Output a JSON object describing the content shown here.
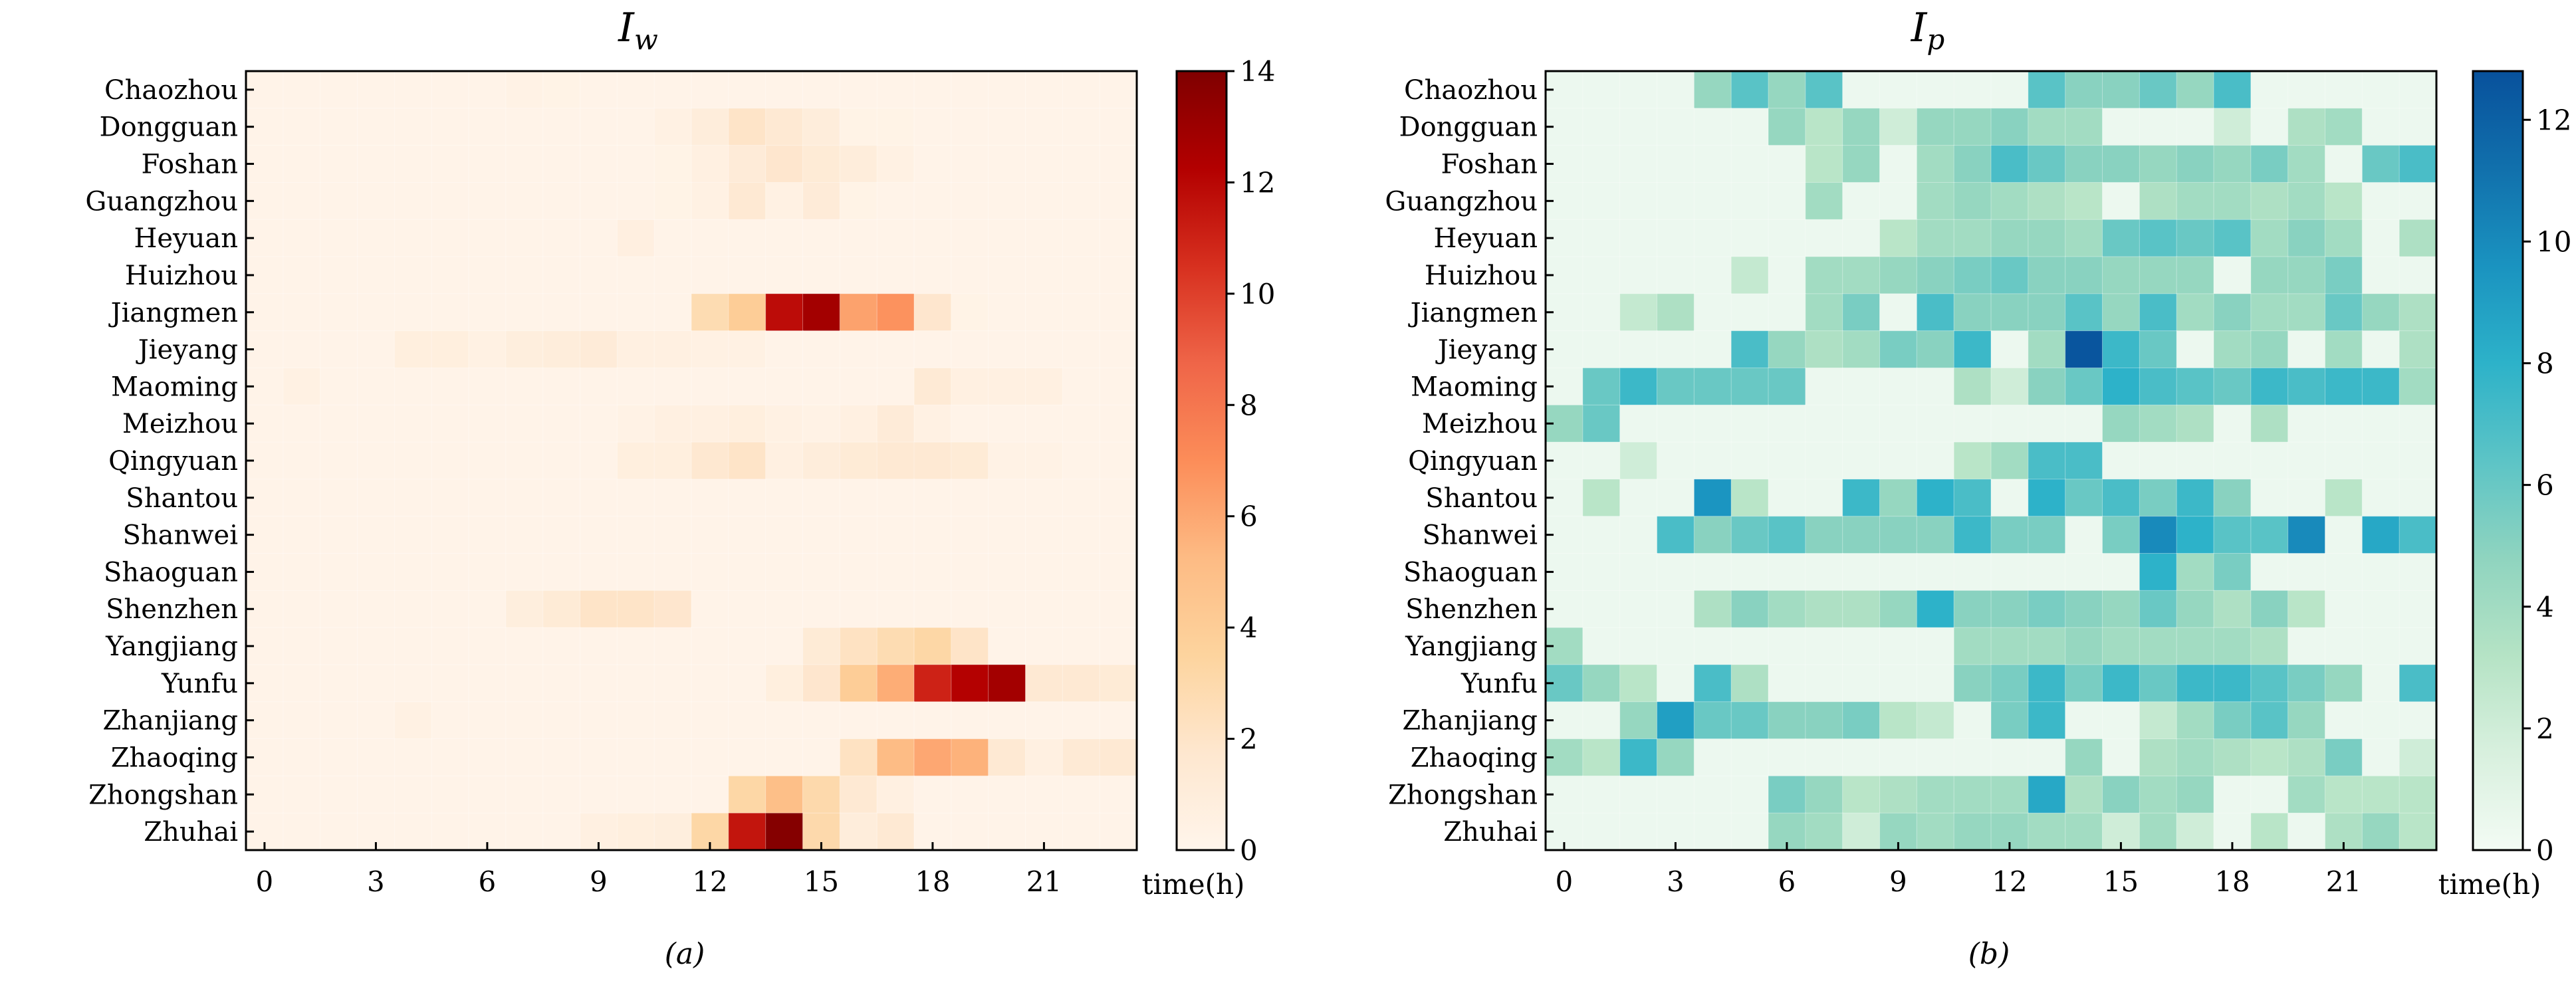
{
  "chart_data": [
    {
      "type": "heatmap",
      "title": "I",
      "title_sub": "w",
      "caption": "(a)",
      "xlabel": "time(h)",
      "x_tick_labels": [
        "0",
        "3",
        "6",
        "9",
        "12",
        "15",
        "18",
        "21"
      ],
      "x_tick_values": [
        0,
        3,
        6,
        9,
        12,
        15,
        18,
        21
      ],
      "hours": 24,
      "cities": [
        "Chaozhou",
        "Dongguan",
        "Foshan",
        "Guangzhou",
        "Heyuan",
        "Huizhou",
        "Jiangmen",
        "Jieyang",
        "Maoming",
        "Meizhou",
        "Qingyuan",
        "Shantou",
        "Shanwei",
        "Shaoguan",
        "Shenzhen",
        "Yangjiang",
        "Yunfu",
        "Zhanjiang",
        "Zhaoqing",
        "Zhongshan",
        "Zhuhai"
      ],
      "colorbar": {
        "min": 0,
        "max": 14,
        "tick_values": [
          0,
          2,
          4,
          6,
          8,
          10,
          12,
          14
        ],
        "tick_labels": [
          "0",
          "2",
          "4",
          "6",
          "8",
          "10",
          "12",
          "14"
        ],
        "stops": [
          "#fff5eb",
          "#fee7cf",
          "#fdd49e",
          "#fdbb84",
          "#fc8d59",
          "#ef6548",
          "#d7301f",
          "#b30000",
          "#7f0000"
        ]
      },
      "values": [
        [
          0.2,
          0.2,
          0.2,
          0.2,
          0.2,
          0.2,
          0.2,
          0.4,
          0.3,
          0.2,
          0.2,
          0.2,
          0.2,
          0.2,
          0.2,
          0.2,
          0.2,
          0.2,
          0.2,
          0.2,
          0.2,
          0.2,
          0.2,
          0.2
        ],
        [
          0.2,
          0.2,
          0.2,
          0.2,
          0.2,
          0.2,
          0.2,
          0.2,
          0.2,
          0.2,
          0.2,
          0.5,
          1.0,
          2.0,
          1.5,
          1.0,
          0.3,
          0.3,
          0.2,
          0.2,
          0.2,
          0.2,
          0.2,
          0.2
        ],
        [
          0.2,
          0.2,
          0.2,
          0.2,
          0.2,
          0.2,
          0.2,
          0.2,
          0.2,
          0.2,
          0.2,
          0.3,
          0.6,
          1.2,
          1.8,
          1.3,
          1.0,
          0.5,
          0.2,
          0.2,
          0.2,
          0.2,
          0.2,
          0.2
        ],
        [
          0.2,
          0.2,
          0.2,
          0.2,
          0.2,
          0.2,
          0.2,
          0.2,
          0.2,
          0.2,
          0.2,
          0.3,
          0.5,
          1.5,
          0.5,
          1.2,
          0.3,
          0.2,
          0.2,
          0.2,
          0.2,
          0.2,
          0.2,
          0.2
        ],
        [
          0.2,
          0.2,
          0.2,
          0.2,
          0.2,
          0.2,
          0.2,
          0.2,
          0.2,
          0.2,
          0.7,
          0.2,
          0.2,
          0.2,
          0.2,
          0.2,
          0.2,
          0.2,
          0.2,
          0.2,
          0.2,
          0.2,
          0.2,
          0.2
        ],
        [
          0.2,
          0.2,
          0.2,
          0.2,
          0.2,
          0.2,
          0.2,
          0.2,
          0.2,
          0.2,
          0.2,
          0.2,
          0.2,
          0.2,
          0.2,
          0.2,
          0.2,
          0.2,
          0.2,
          0.2,
          0.2,
          0.2,
          0.2,
          0.2
        ],
        [
          0.2,
          0.2,
          0.2,
          0.2,
          0.2,
          0.2,
          0.2,
          0.2,
          0.2,
          0.2,
          0.2,
          0.2,
          2.8,
          4.0,
          11.8,
          12.8,
          6.2,
          6.8,
          1.8,
          0.3,
          0.2,
          0.2,
          0.2,
          0.2
        ],
        [
          0.2,
          0.2,
          0.2,
          0.2,
          0.8,
          0.8,
          0.5,
          0.9,
          1.0,
          1.2,
          0.6,
          0.6,
          0.5,
          0.5,
          0.2,
          0.2,
          0.2,
          0.2,
          0.2,
          0.2,
          0.2,
          0.2,
          0.2,
          0.2
        ],
        [
          0.2,
          0.5,
          0.2,
          0.2,
          0.2,
          0.2,
          0.2,
          0.2,
          0.2,
          0.2,
          0.2,
          0.2,
          0.2,
          0.2,
          0.2,
          0.2,
          0.2,
          0.2,
          1.4,
          0.6,
          0.6,
          0.6,
          0.2,
          0.2
        ],
        [
          0.2,
          0.2,
          0.2,
          0.2,
          0.2,
          0.2,
          0.2,
          0.2,
          0.2,
          0.2,
          0.4,
          0.6,
          0.6,
          0.8,
          0.5,
          0.4,
          0.6,
          1.2,
          0.5,
          0.2,
          0.2,
          0.2,
          0.2,
          0.2
        ],
        [
          0.2,
          0.2,
          0.2,
          0.2,
          0.2,
          0.2,
          0.2,
          0.2,
          0.2,
          0.2,
          0.8,
          0.8,
          1.6,
          2.0,
          0.6,
          1.0,
          1.3,
          1.5,
          1.5,
          1.3,
          0.4,
          0.4,
          0.2,
          0.2
        ],
        [
          0.2,
          0.2,
          0.2,
          0.2,
          0.2,
          0.2,
          0.2,
          0.2,
          0.2,
          0.2,
          0.2,
          0.2,
          0.2,
          0.2,
          0.2,
          0.2,
          0.2,
          0.2,
          0.2,
          0.2,
          0.2,
          0.2,
          0.2,
          0.2
        ],
        [
          0.2,
          0.2,
          0.2,
          0.2,
          0.2,
          0.2,
          0.2,
          0.2,
          0.2,
          0.2,
          0.2,
          0.2,
          0.2,
          0.2,
          0.2,
          0.2,
          0.2,
          0.2,
          0.2,
          0.2,
          0.2,
          0.2,
          0.2,
          0.2
        ],
        [
          0.2,
          0.2,
          0.2,
          0.2,
          0.2,
          0.2,
          0.2,
          0.2,
          0.2,
          0.2,
          0.2,
          0.2,
          0.2,
          0.2,
          0.2,
          0.2,
          0.2,
          0.2,
          0.2,
          0.2,
          0.2,
          0.2,
          0.2,
          0.2
        ],
        [
          0.2,
          0.2,
          0.2,
          0.2,
          0.2,
          0.2,
          0.2,
          0.9,
          1.3,
          2.0,
          2.0,
          1.8,
          0.2,
          0.2,
          0.2,
          0.2,
          0.2,
          0.2,
          0.2,
          0.2,
          0.2,
          0.2,
          0.2,
          0.2
        ],
        [
          0.2,
          0.2,
          0.2,
          0.2,
          0.2,
          0.2,
          0.2,
          0.2,
          0.2,
          0.2,
          0.2,
          0.2,
          0.2,
          0.2,
          0.2,
          1.3,
          2.2,
          2.8,
          3.2,
          2.0,
          0.2,
          0.2,
          0.2,
          0.2
        ],
        [
          0.2,
          0.2,
          0.2,
          0.2,
          0.2,
          0.2,
          0.2,
          0.2,
          0.2,
          0.2,
          0.2,
          0.2,
          0.2,
          0.2,
          0.8,
          1.8,
          4.0,
          5.8,
          11.0,
          12.2,
          12.8,
          1.5,
          1.5,
          1.3
        ],
        [
          0.2,
          0.2,
          0.2,
          0.2,
          0.5,
          0.2,
          0.2,
          0.2,
          0.2,
          0.2,
          0.2,
          0.2,
          0.2,
          0.2,
          0.2,
          0.2,
          0.2,
          0.2,
          0.2,
          0.2,
          0.2,
          0.2,
          0.2,
          0.2
        ],
        [
          0.2,
          0.2,
          0.2,
          0.2,
          0.2,
          0.2,
          0.2,
          0.2,
          0.2,
          0.2,
          0.2,
          0.2,
          0.2,
          0.2,
          0.2,
          0.2,
          2.2,
          5.2,
          6.0,
          5.6,
          1.5,
          0.6,
          1.4,
          1.5
        ],
        [
          0.2,
          0.2,
          0.2,
          0.2,
          0.2,
          0.2,
          0.2,
          0.2,
          0.2,
          0.2,
          0.2,
          0.2,
          0.2,
          3.2,
          5.0,
          3.0,
          1.5,
          0.6,
          0.2,
          0.2,
          0.2,
          0.2,
          0.2,
          0.2
        ],
        [
          0.2,
          0.2,
          0.2,
          0.2,
          0.2,
          0.2,
          0.2,
          0.2,
          0.2,
          0.6,
          0.8,
          0.9,
          3.2,
          11.5,
          13.8,
          3.0,
          1.0,
          1.5,
          0.2,
          0.2,
          0.2,
          0.2,
          0.2,
          0.2
        ]
      ]
    },
    {
      "type": "heatmap",
      "title": "I",
      "title_sub": "p",
      "caption": "(b)",
      "xlabel": "time(h)",
      "x_tick_labels": [
        "0",
        "3",
        "6",
        "9",
        "12",
        "15",
        "18",
        "21"
      ],
      "x_tick_values": [
        0,
        3,
        6,
        9,
        12,
        15,
        18,
        21
      ],
      "hours": 24,
      "cities": [
        "Chaozhou",
        "Dongguan",
        "Foshan",
        "Guangzhou",
        "Heyuan",
        "Huizhou",
        "Jiangmen",
        "Jieyang",
        "Maoming",
        "Meizhou",
        "Qingyuan",
        "Shantou",
        "Shanwei",
        "Shaoguan",
        "Shenzhen",
        "Yangjiang",
        "Yunfu",
        "Zhanjiang",
        "Zhaoqing",
        "Zhongshan",
        "Zhuhai"
      ],
      "colorbar": {
        "min": 0,
        "max": 12.8,
        "tick_values": [
          0,
          2,
          4,
          6,
          8,
          10,
          12
        ],
        "tick_labels": [
          "0",
          "2",
          "4",
          "6",
          "8",
          "10",
          "12"
        ],
        "stops": [
          "#f3fbf4",
          "#d8f0de",
          "#b5e3c5",
          "#8fd4bf",
          "#5cc4c6",
          "#2db2c9",
          "#1a93c0",
          "#1170ac",
          "#08519c"
        ]
      },
      "values": [
        [
          0.4,
          0.4,
          0.4,
          0.4,
          4.5,
          6.5,
          4.5,
          6.5,
          0.4,
          0.4,
          0.4,
          0.4,
          0.4,
          6.5,
          5.0,
          5.0,
          6.0,
          4.5,
          7.0,
          0.4,
          0.4,
          0.4,
          0.4,
          0.4
        ],
        [
          0.4,
          0.4,
          0.4,
          0.4,
          0.4,
          0.4,
          4.5,
          3.0,
          4.5,
          2.0,
          4.5,
          4.5,
          5.0,
          4.0,
          4.0,
          0.4,
          0.4,
          0.4,
          2.0,
          0.4,
          3.5,
          4.0,
          0.4,
          0.4
        ],
        [
          0.4,
          0.4,
          0.4,
          0.4,
          0.4,
          0.4,
          0.4,
          3.0,
          4.5,
          0.4,
          4.0,
          5.0,
          7.0,
          6.0,
          5.0,
          5.0,
          4.5,
          5.0,
          4.5,
          5.5,
          4.0,
          0.4,
          6.0,
          7.0
        ],
        [
          0.4,
          0.4,
          0.4,
          0.4,
          0.4,
          0.4,
          0.4,
          4.0,
          0.4,
          0.4,
          4.0,
          4.5,
          4.0,
          3.5,
          3.0,
          0.4,
          3.5,
          4.0,
          4.0,
          3.5,
          4.0,
          3.0,
          0.4,
          0.4
        ],
        [
          0.4,
          0.4,
          0.4,
          0.4,
          0.4,
          0.4,
          0.4,
          0.4,
          0.4,
          3.0,
          4.0,
          4.0,
          4.5,
          4.5,
          4.0,
          6.0,
          6.5,
          6.0,
          6.5,
          4.0,
          5.0,
          4.0,
          0.4,
          3.5
        ],
        [
          0.4,
          0.4,
          0.4,
          0.4,
          0.4,
          2.5,
          0.4,
          4.0,
          4.0,
          4.5,
          5.0,
          5.5,
          6.0,
          5.0,
          5.0,
          4.5,
          4.5,
          4.5,
          0.4,
          4.5,
          4.5,
          5.5,
          0.4,
          0.4
        ],
        [
          0.4,
          0.4,
          2.5,
          3.5,
          0.4,
          0.4,
          0.4,
          4.0,
          5.5,
          0.4,
          7.0,
          5.0,
          5.0,
          5.0,
          6.5,
          4.5,
          7.0,
          4.0,
          5.0,
          4.0,
          4.0,
          6.0,
          4.5,
          3.5
        ],
        [
          0.4,
          0.4,
          0.4,
          0.4,
          0.4,
          7.0,
          4.5,
          3.5,
          4.0,
          5.5,
          5.0,
          7.5,
          0.4,
          4.0,
          12.6,
          7.5,
          6.0,
          0.4,
          4.0,
          4.5,
          0.4,
          4.0,
          0.4,
          3.5
        ],
        [
          0.4,
          6.0,
          7.5,
          6.0,
          6.0,
          6.0,
          6.0,
          0.4,
          0.4,
          0.4,
          0.4,
          3.5,
          2.0,
          5.0,
          6.0,
          8.0,
          7.0,
          6.5,
          6.0,
          7.5,
          7.0,
          7.5,
          7.5,
          4.0
        ],
        [
          4.5,
          6.0,
          0.4,
          0.4,
          0.4,
          0.4,
          0.4,
          0.4,
          0.4,
          0.4,
          0.4,
          0.4,
          0.4,
          0.4,
          0.4,
          4.5,
          4.0,
          3.5,
          0.4,
          3.5,
          0.4,
          0.4,
          0.4,
          0.4
        ],
        [
          0.4,
          0.4,
          2.0,
          0.4,
          0.4,
          0.4,
          0.4,
          0.4,
          0.4,
          0.4,
          0.4,
          3.0,
          4.0,
          7.0,
          7.0,
          0.4,
          0.4,
          0.4,
          0.4,
          0.4,
          0.4,
          0.4,
          0.4,
          0.4
        ],
        [
          0.4,
          3.0,
          0.4,
          0.4,
          9.5,
          3.0,
          0.4,
          0.4,
          7.5,
          4.5,
          8.0,
          7.0,
          0.4,
          8.0,
          6.0,
          7.0,
          5.5,
          7.5,
          5.0,
          0.4,
          0.4,
          3.0,
          0.4,
          0.4
        ],
        [
          0.4,
          0.4,
          0.4,
          7.0,
          5.0,
          6.0,
          6.5,
          5.0,
          5.0,
          5.0,
          5.0,
          7.5,
          5.5,
          5.5,
          0.4,
          5.5,
          10.0,
          8.0,
          6.5,
          6.5,
          10.0,
          0.4,
          8.5,
          7.0
        ],
        [
          0.4,
          0.4,
          0.4,
          0.4,
          0.4,
          0.4,
          0.4,
          0.4,
          0.4,
          0.4,
          0.4,
          0.4,
          0.4,
          0.4,
          0.4,
          0.4,
          8.0,
          4.0,
          5.5,
          0.4,
          0.4,
          0.4,
          0.4,
          0.4
        ],
        [
          0.4,
          0.4,
          0.4,
          0.4,
          3.5,
          5.0,
          4.0,
          3.5,
          3.5,
          4.5,
          8.0,
          5.0,
          5.0,
          5.5,
          5.0,
          4.5,
          6.0,
          4.5,
          3.5,
          5.0,
          3.0,
          0.4,
          0.4,
          0.4
        ],
        [
          4.0,
          0.4,
          0.4,
          0.4,
          0.4,
          0.4,
          0.4,
          0.4,
          0.4,
          0.4,
          0.4,
          4.0,
          4.0,
          4.0,
          4.5,
          4.0,
          4.0,
          4.0,
          4.0,
          3.5,
          0.4,
          0.4,
          0.4,
          0.4
        ],
        [
          6.0,
          4.5,
          3.0,
          0.4,
          7.0,
          3.5,
          0.4,
          0.4,
          0.4,
          0.4,
          0.4,
          5.0,
          5.5,
          7.5,
          5.5,
          7.5,
          6.0,
          7.5,
          7.5,
          6.5,
          5.5,
          4.5,
          0.4,
          7.0
        ],
        [
          0.4,
          0.4,
          4.5,
          9.0,
          6.0,
          6.0,
          5.0,
          5.0,
          5.5,
          3.0,
          2.5,
          0.4,
          5.5,
          7.5,
          0.4,
          0.4,
          2.5,
          4.0,
          5.5,
          6.5,
          4.5,
          0.4,
          0.4,
          0.4
        ],
        [
          4.0,
          3.0,
          7.5,
          4.5,
          0.4,
          0.4,
          0.4,
          0.4,
          0.4,
          0.4,
          0.4,
          0.4,
          0.4,
          0.4,
          4.5,
          0.4,
          3.5,
          4.0,
          3.5,
          3.0,
          3.5,
          5.5,
          0.4,
          2.0
        ],
        [
          0.4,
          0.4,
          0.4,
          0.4,
          0.4,
          0.4,
          5.5,
          4.5,
          3.0,
          3.5,
          4.0,
          4.0,
          4.0,
          8.5,
          3.5,
          5.0,
          4.0,
          4.5,
          0.4,
          0.4,
          4.0,
          3.0,
          3.0,
          3.0
        ],
        [
          0.4,
          0.4,
          0.4,
          0.4,
          0.4,
          0.4,
          4.5,
          4.0,
          2.0,
          4.5,
          4.0,
          4.5,
          4.5,
          4.0,
          4.0,
          2.0,
          4.0,
          2.0,
          0.4,
          3.0,
          0.4,
          3.5,
          4.5,
          3.0
        ]
      ]
    }
  ]
}
